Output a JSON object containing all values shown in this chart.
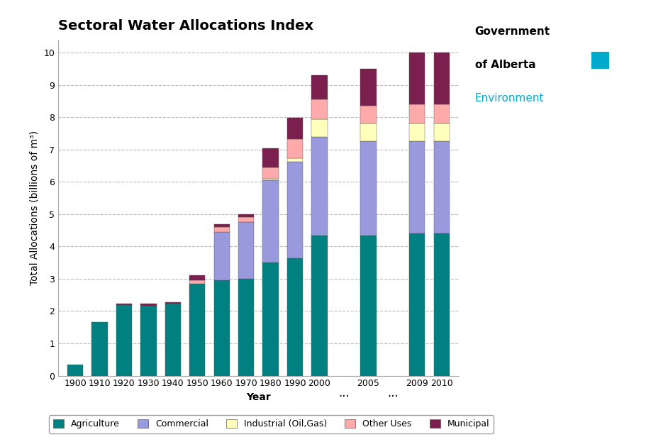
{
  "title": "Sectoral Water Allocations Index",
  "xlabel": "Year",
  "ylabel": "Total Allocations (billions of m³)",
  "categories": [
    "1900",
    "1910",
    "1920",
    "1930",
    "1940",
    "1950",
    "1960",
    "1970",
    "1980",
    "1990",
    "2000",
    "...",
    "2005",
    "...",
    "2009",
    "2010"
  ],
  "agriculture": [
    0.35,
    1.65,
    2.18,
    2.17,
    2.22,
    2.85,
    2.95,
    3.0,
    3.5,
    3.63,
    4.35,
    0,
    4.35,
    0,
    4.4,
    4.4
  ],
  "commercial": [
    0.0,
    0.0,
    0.0,
    0.0,
    0.0,
    0.0,
    1.5,
    1.75,
    2.55,
    3.0,
    3.05,
    0,
    2.9,
    0,
    2.85,
    2.85
  ],
  "industrial_oil_gas": [
    0.0,
    0.0,
    0.0,
    0.0,
    0.0,
    0.0,
    0.0,
    0.0,
    0.05,
    0.1,
    0.55,
    0,
    0.55,
    0,
    0.55,
    0.55
  ],
  "other_uses": [
    0.0,
    0.0,
    0.0,
    0.0,
    0.0,
    0.1,
    0.15,
    0.15,
    0.35,
    0.6,
    0.6,
    0,
    0.55,
    0,
    0.6,
    0.6
  ],
  "municipal": [
    0.0,
    0.0,
    0.05,
    0.05,
    0.05,
    0.15,
    0.1,
    0.1,
    0.6,
    0.65,
    0.75,
    0,
    1.15,
    0,
    1.6,
    1.6
  ],
  "color_agriculture": "#008080",
  "color_commercial": "#9999dd",
  "color_industrial_oil_gas": "#ffffbb",
  "color_other_uses": "#ffaaaa",
  "color_municipal": "#7b1f4e",
  "ylim": [
    0,
    10.4
  ],
  "yticks": [
    0,
    1,
    2,
    3,
    4,
    5,
    6,
    7,
    8,
    9,
    10
  ],
  "background_color": "#ffffff",
  "grid_color": "#bbbbbb",
  "title_fontsize": 14,
  "axis_label_fontsize": 10,
  "tick_fontsize": 9,
  "legend_fontsize": 9,
  "govt_text1": "Government",
  "govt_text2": "of Alberta",
  "govt_text3": "Environment",
  "govt_square_color": "#00aacc"
}
